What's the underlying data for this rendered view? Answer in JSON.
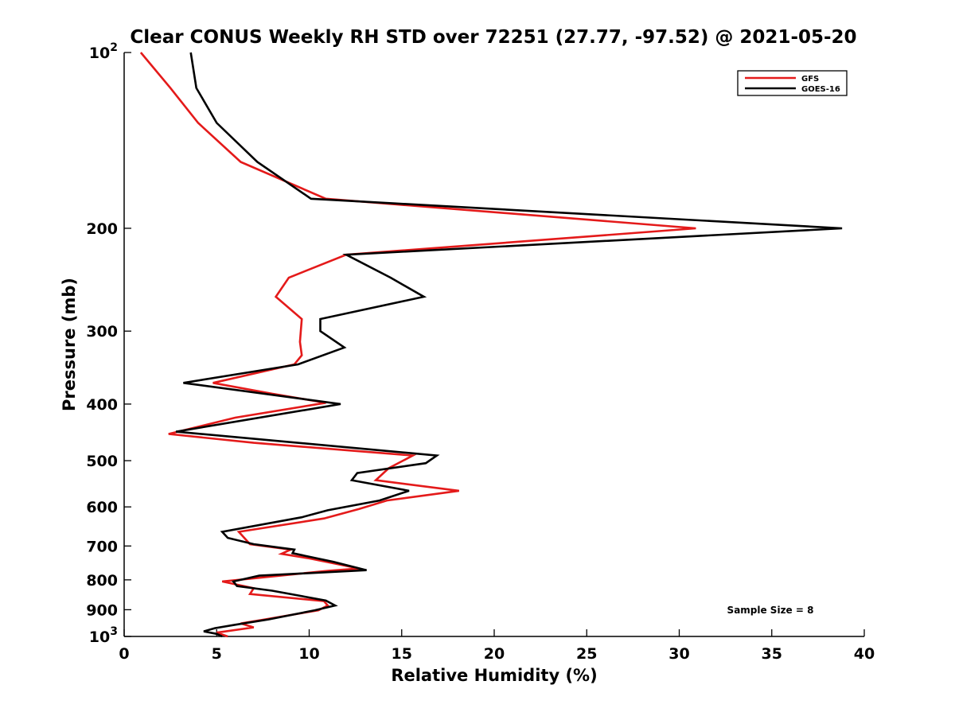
{
  "chart_data": {
    "type": "line",
    "title": "Clear CONUS Weekly RH STD over 72251 (27.77, -97.52) @ 2021-05-20",
    "xlabel": "Relative Humidity (%)",
    "ylabel": "Pressure (mb)",
    "xlim": [
      0,
      40
    ],
    "ylim": [
      100,
      1000
    ],
    "y_scale": "log",
    "y_reversed": true,
    "grid": false,
    "legend_position": "top-right",
    "x_ticks": [
      {
        "value": 0,
        "label": "0"
      },
      {
        "value": 5,
        "label": "5"
      },
      {
        "value": 10,
        "label": "10"
      },
      {
        "value": 15,
        "label": "15"
      },
      {
        "value": 20,
        "label": "20"
      },
      {
        "value": 25,
        "label": "25"
      },
      {
        "value": 30,
        "label": "30"
      },
      {
        "value": 35,
        "label": "35"
      },
      {
        "value": 40,
        "label": "40"
      }
    ],
    "y_ticks": [
      {
        "value": 100,
        "label": "10",
        "sup": "2"
      },
      {
        "value": 200,
        "label": "200",
        "sup": ""
      },
      {
        "value": 300,
        "label": "300",
        "sup": ""
      },
      {
        "value": 400,
        "label": "400",
        "sup": ""
      },
      {
        "value": 500,
        "label": "500",
        "sup": ""
      },
      {
        "value": 600,
        "label": "600",
        "sup": ""
      },
      {
        "value": 700,
        "label": "700",
        "sup": ""
      },
      {
        "value": 800,
        "label": "800",
        "sup": ""
      },
      {
        "value": 900,
        "label": "900",
        "sup": ""
      },
      {
        "value": 1000,
        "label": "10",
        "sup": "3"
      }
    ],
    "annotation": "Sample Size = 8",
    "series": [
      {
        "name": "GFS",
        "color": "#e41a1a",
        "points": [
          [
            0.9,
            100
          ],
          [
            2.5,
            115
          ],
          [
            4.0,
            132
          ],
          [
            6.3,
            154
          ],
          [
            10.9,
            178
          ],
          [
            30.9,
            200
          ],
          [
            12.0,
            222
          ],
          [
            8.9,
            243
          ],
          [
            8.2,
            262
          ],
          [
            9.6,
            286
          ],
          [
            9.5,
            313
          ],
          [
            9.6,
            330
          ],
          [
            9.2,
            342
          ],
          [
            4.8,
            368
          ],
          [
            8.0,
            384
          ],
          [
            10.9,
            398
          ],
          [
            6.0,
            422
          ],
          [
            2.4,
            450
          ],
          [
            7.0,
            466
          ],
          [
            15.6,
            490
          ],
          [
            14.3,
            515
          ],
          [
            13.6,
            540
          ],
          [
            18.1,
            563
          ],
          [
            14.2,
            585
          ],
          [
            12.7,
            605
          ],
          [
            10.8,
            628
          ],
          [
            6.2,
            662
          ],
          [
            6.8,
            695
          ],
          [
            9.0,
            710
          ],
          [
            8.5,
            722
          ],
          [
            10.0,
            735
          ],
          [
            12.7,
            765
          ],
          [
            11.0,
            772
          ],
          [
            5.3,
            805
          ],
          [
            7.0,
            827
          ],
          [
            6.8,
            846
          ],
          [
            10.8,
            870
          ],
          [
            11.0,
            885
          ],
          [
            10.5,
            902
          ],
          [
            7.6,
            935
          ],
          [
            6.3,
            950
          ],
          [
            7.0,
            965
          ],
          [
            5.0,
            985
          ],
          [
            5.6,
            1000
          ]
        ]
      },
      {
        "name": "GOES-16",
        "color": "#000000",
        "points": [
          [
            3.6,
            100
          ],
          [
            3.9,
            115
          ],
          [
            5.0,
            132
          ],
          [
            7.2,
            154
          ],
          [
            10.1,
            178
          ],
          [
            38.8,
            200
          ],
          [
            12.0,
            222
          ],
          [
            14.4,
            243
          ],
          [
            16.2,
            262
          ],
          [
            10.6,
            286
          ],
          [
            10.6,
            300
          ],
          [
            11.9,
            320
          ],
          [
            9.4,
            342
          ],
          [
            3.2,
            368
          ],
          [
            11.7,
            400
          ],
          [
            2.8,
            446
          ],
          [
            16.9,
            490
          ],
          [
            16.3,
            505
          ],
          [
            12.6,
            525
          ],
          [
            12.3,
            540
          ],
          [
            15.4,
            563
          ],
          [
            13.8,
            585
          ],
          [
            11.0,
            608
          ],
          [
            9.6,
            625
          ],
          [
            5.3,
            662
          ],
          [
            5.6,
            678
          ],
          [
            7.0,
            695
          ],
          [
            9.2,
            710
          ],
          [
            9.1,
            720
          ],
          [
            11.3,
            745
          ],
          [
            13.1,
            770
          ],
          [
            7.3,
            787
          ],
          [
            5.9,
            805
          ],
          [
            6.1,
            820
          ],
          [
            8.0,
            835
          ],
          [
            10.9,
            868
          ],
          [
            11.4,
            885
          ],
          [
            10.3,
            902
          ],
          [
            7.8,
            935
          ],
          [
            6.0,
            955
          ],
          [
            4.9,
            968
          ],
          [
            4.3,
            980
          ],
          [
            5.0,
            990
          ],
          [
            5.3,
            1000
          ]
        ]
      }
    ]
  }
}
